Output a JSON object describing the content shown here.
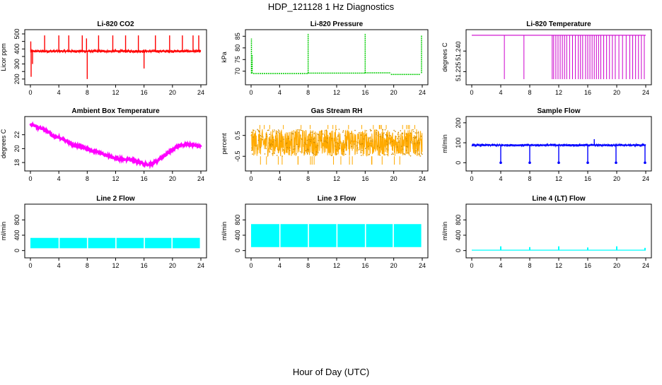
{
  "figure": {
    "title": "HDP_121128  1 Hz Diagnostics",
    "xlabel": "Hour of Day (UTC)"
  },
  "chart_data": [
    {
      "type": "line",
      "title": "Li-820 CO2",
      "ylabel": "Licor ppm",
      "color": "#ff0000",
      "xlim": [
        0,
        24
      ],
      "ylim": [
        190,
        500
      ],
      "xticks": [
        0,
        4,
        8,
        12,
        16,
        20,
        24
      ],
      "yticks": [
        200,
        250,
        300,
        350,
        400,
        450,
        500
      ],
      "ytick_labels": [
        "200",
        "",
        "300",
        "",
        "400",
        "",
        "500"
      ],
      "baseline": 385,
      "band": [
        375,
        395
      ],
      "spikes": [
        {
          "x": 0.05,
          "y": 450
        },
        {
          "x": 0.1,
          "y": 215
        },
        {
          "x": 0.3,
          "y": 300
        },
        {
          "x": 2.0,
          "y": 490
        },
        {
          "x": 4.0,
          "y": 490
        },
        {
          "x": 5.4,
          "y": 490
        },
        {
          "x": 7.3,
          "y": 490
        },
        {
          "x": 7.9,
          "y": 470
        },
        {
          "x": 8.0,
          "y": 200
        },
        {
          "x": 9.6,
          "y": 490
        },
        {
          "x": 11.6,
          "y": 490
        },
        {
          "x": 13.4,
          "y": 490
        },
        {
          "x": 15.2,
          "y": 490
        },
        {
          "x": 16.0,
          "y": 270
        },
        {
          "x": 17.6,
          "y": 490
        },
        {
          "x": 19.6,
          "y": 490
        },
        {
          "x": 21.4,
          "y": 490
        },
        {
          "x": 22.9,
          "y": 490
        },
        {
          "x": 23.7,
          "y": 490
        }
      ]
    },
    {
      "type": "line",
      "title": "Li-820 Pressure",
      "ylabel": "kPa",
      "color": "#00cc00",
      "xlim": [
        0,
        24
      ],
      "ylim": [
        66,
        86
      ],
      "xticks": [
        0,
        4,
        8,
        12,
        16,
        20,
        24
      ],
      "yticks": [
        70,
        75,
        80,
        85
      ],
      "ytick_labels": [
        "70",
        "75",
        "80",
        "85"
      ],
      "segments": [
        {
          "x": [
            0.3,
            8.0
          ],
          "y": [
            69.0,
            69.0
          ]
        },
        {
          "x": [
            8.0,
            16.0
          ],
          "y": [
            69.2,
            69.2
          ]
        },
        {
          "x": [
            16.0,
            19.6
          ],
          "y": [
            69.3,
            69.3
          ]
        },
        {
          "x": [
            19.6,
            23.7
          ],
          "y": [
            68.6,
            68.6
          ]
        }
      ],
      "spikes": [
        {
          "x": 0.05,
          "y": 84
        },
        {
          "x": 0.15,
          "y": 77
        },
        {
          "x": 8.0,
          "y": 86
        },
        {
          "x": 16.0,
          "y": 86
        },
        {
          "x": 23.9,
          "y": 85.5
        }
      ]
    },
    {
      "type": "line",
      "title": "Li-820 Temperature",
      "ylabel": "degrees C",
      "color": "#cc00cc",
      "xlim": [
        0,
        24
      ],
      "ylim": [
        51.2185,
        51.2525
      ],
      "xticks": [
        0,
        4,
        8,
        12,
        16,
        20,
        24
      ],
      "yticks": [
        51.225,
        51.24
      ],
      "ytick_labels": [
        "51.225",
        "51.240"
      ],
      "baseline": 51.2515,
      "drop_to": 51.2195,
      "drops": [
        4.5,
        7.2,
        11.1,
        11.3,
        11.6,
        11.9,
        12.2,
        12.5,
        12.8,
        13.1,
        13.5,
        13.9,
        14.3,
        14.7,
        15.0,
        15.3,
        15.7,
        16.0,
        16.3,
        16.6,
        16.9,
        17.2,
        17.5,
        17.8,
        18.2,
        18.6,
        19.0,
        19.4,
        19.8,
        20.3,
        20.8,
        21.3,
        21.8,
        22.2,
        22.6,
        23.0,
        23.4,
        23.8
      ]
    },
    {
      "type": "line",
      "title": "Ambient Box Temperature",
      "ylabel": "degrees C",
      "color": "#ff00ff",
      "xlim": [
        0,
        24
      ],
      "ylim": [
        17.4,
        24.0
      ],
      "xticks": [
        0,
        4,
        8,
        12,
        16,
        20,
        24
      ],
      "yticks": [
        18,
        20,
        22
      ],
      "ytick_labels": [
        "18",
        "20",
        "22"
      ],
      "x": [
        0,
        1,
        2,
        3,
        4,
        5,
        6,
        7,
        8,
        9,
        10,
        11,
        12,
        13,
        14,
        15,
        16,
        16.5,
        17,
        18,
        19,
        20,
        21,
        22,
        23,
        24
      ],
      "y": [
        23.5,
        23.1,
        22.7,
        22.0,
        21.6,
        21.1,
        20.6,
        20.3,
        20.0,
        19.6,
        19.3,
        18.9,
        18.6,
        18.5,
        18.4,
        18.1,
        17.8,
        17.7,
        17.8,
        18.3,
        19.1,
        19.9,
        20.4,
        20.7,
        20.5,
        20.3
      ],
      "noise": 0.3
    },
    {
      "type": "line",
      "title": "Gas Stream RH",
      "ylabel": "percent",
      "color": "#ffaa00",
      "point_color": "#cc8800",
      "xlim": [
        0,
        24
      ],
      "ylim": [
        -1.0,
        1.2
      ],
      "xticks": [
        0,
        4,
        8,
        12,
        16,
        20,
        24
      ],
      "yticks": [
        -0.5,
        0.5
      ],
      "ytick_labels": [
        "-0.5",
        "0.5"
      ],
      "band": [
        -0.5,
        0.8
      ],
      "extremes": [
        -0.9,
        1.0
      ]
    },
    {
      "type": "line",
      "title": "Sample Flow",
      "ylabel": "ml/min",
      "color": "#0000ff",
      "xlim": [
        0,
        24
      ],
      "ylim": [
        -20,
        210
      ],
      "xticks": [
        0,
        4,
        8,
        12,
        16,
        20,
        24
      ],
      "yticks": [
        0,
        100,
        200
      ],
      "ytick_labels": [
        "0",
        "100",
        "200"
      ],
      "baseline": 88,
      "band": [
        82,
        94
      ],
      "dips": [
        4.0,
        8.0,
        12.0,
        16.0,
        19.9,
        23.9
      ],
      "dip_to": 0,
      "spikes": [
        {
          "x": 16.9,
          "y": 118
        }
      ]
    },
    {
      "type": "area",
      "title": "Line 2 Flow",
      "ylabel": "ml/min",
      "color": "#00ffff",
      "xlim": [
        0,
        24
      ],
      "ylim": [
        -80,
        1100
      ],
      "xticks": [
        0,
        4,
        8,
        12,
        16,
        20,
        24
      ],
      "yticks": [
        0,
        400,
        800
      ],
      "ytick_labels": [
        "0",
        "400",
        "800"
      ],
      "band": [
        60,
        330
      ],
      "gaps": [
        4.0,
        8.0,
        12.0,
        16.0,
        19.9,
        23.9
      ]
    },
    {
      "type": "area",
      "title": "Line 3 Flow",
      "ylabel": "ml/min",
      "color": "#00ffff",
      "xlim": [
        0,
        24
      ],
      "ylim": [
        -80,
        1100
      ],
      "xticks": [
        0,
        4,
        8,
        12,
        16,
        20,
        24
      ],
      "yticks": [
        0,
        400,
        800
      ],
      "ytick_labels": [
        "0",
        "400",
        "800"
      ],
      "band": [
        90,
        690
      ],
      "gaps": [
        4.0,
        8.0,
        12.0,
        16.0,
        19.9,
        23.9
      ]
    },
    {
      "type": "line",
      "title": "Line 4 (LT) Flow",
      "ylabel": "ml/min",
      "color": "#00ffff",
      "xlim": [
        0,
        24
      ],
      "ylim": [
        -80,
        1100
      ],
      "xticks": [
        0,
        4,
        8,
        12,
        16,
        20,
        24
      ],
      "yticks": [
        0,
        400,
        800
      ],
      "ytick_labels": [
        "0",
        "400",
        "800"
      ],
      "baseline": 10,
      "spikes": [
        {
          "x": 4.0,
          "y": 110
        },
        {
          "x": 8.0,
          "y": 90
        },
        {
          "x": 12.0,
          "y": 110
        },
        {
          "x": 16.0,
          "y": 80
        },
        {
          "x": 20.0,
          "y": 110
        },
        {
          "x": 23.9,
          "y": 70
        }
      ]
    }
  ]
}
